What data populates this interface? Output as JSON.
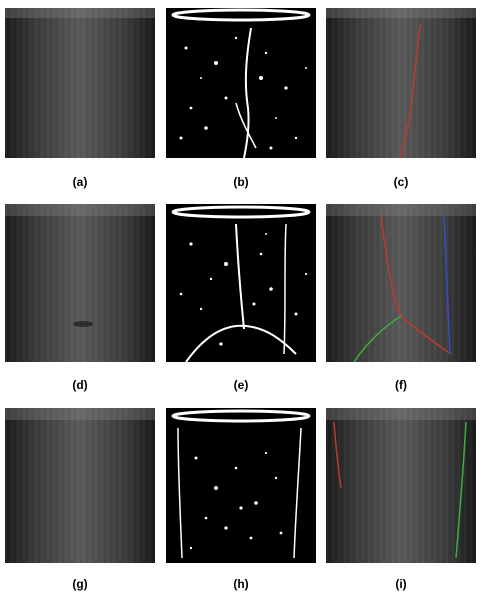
{
  "figure": {
    "panels": [
      {
        "label": "(a)",
        "kind": "grayscale"
      },
      {
        "label": "(b)",
        "kind": "binary"
      },
      {
        "label": "(c)",
        "kind": "overlay"
      },
      {
        "label": "(d)",
        "kind": "grayscale"
      },
      {
        "label": "(e)",
        "kind": "binary"
      },
      {
        "label": "(f)",
        "kind": "overlay"
      },
      {
        "label": "(g)",
        "kind": "grayscale"
      },
      {
        "label": "(h)",
        "kind": "binary"
      },
      {
        "label": "(i)",
        "kind": "overlay"
      }
    ],
    "colors": {
      "crack_red": "#c0392b",
      "crack_blue": "#3b4bc8",
      "crack_green": "#3fae3f",
      "binary_white": "#ffffff",
      "background_black": "#000000"
    }
  }
}
